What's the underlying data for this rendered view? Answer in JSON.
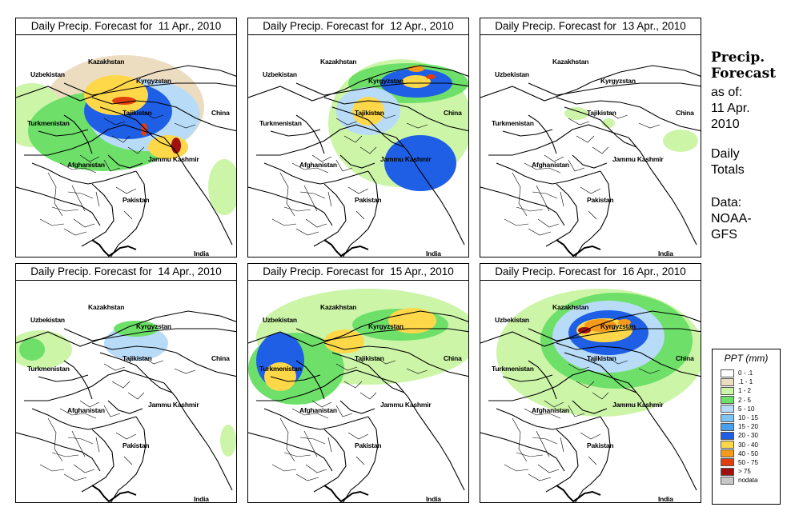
{
  "panels": [
    {
      "title": "Daily Precip. Forecast for  11 Apr., 2010",
      "date": "11 Apr., 2010"
    },
    {
      "title": "Daily Precip. Forecast for  12 Apr., 2010",
      "date": "12 Apr., 2010"
    },
    {
      "title": "Daily Precip. Forecast for  13 Apr., 2010",
      "date": "13 Apr., 2010"
    },
    {
      "title": "Daily Precip. Forecast for  14 Apr., 2010",
      "date": "14 Apr., 2010"
    },
    {
      "title": "Daily Precip. Forecast for  15 Apr., 2010",
      "date": "15 Apr., 2010"
    },
    {
      "title": "Daily Precip. Forecast for  16 Apr., 2010",
      "date": "16 Apr., 2010"
    }
  ],
  "map_labels": {
    "kazakhstan": "Kazakhstan",
    "uzbekistan": "Uzbekistan",
    "kyrgyzstan": "Kyrgyzstan",
    "tajikistan": "Tajikistan",
    "turkmenistan": "Turkmenistan",
    "china": "China",
    "afghanistan": "Afghanistan",
    "jammu_kashmir": "Jammu Kashmir",
    "pakistan": "Pakistan",
    "india": "India"
  },
  "sidebar": {
    "title_line1": "Precip.",
    "title_line2": "Forecast",
    "asof_line1": "as of:",
    "asof_line2": "11 Apr.",
    "asof_line3": "2010",
    "daily_line1": "Daily",
    "daily_line2": "Totals",
    "data_line1": "Data:",
    "data_line2": "NOAA-",
    "data_line3": "GFS"
  },
  "legend": {
    "title": "PPT (mm)",
    "items": [
      {
        "label": "0 - .1",
        "color": "#ffffff"
      },
      {
        "label": ".1 - 1",
        "color": "#ecdcc0"
      },
      {
        "label": "1 - 2",
        "color": "#ccf5a8"
      },
      {
        "label": "2 - 5",
        "color": "#6ee06a"
      },
      {
        "label": "5 - 10",
        "color": "#b8dcf8"
      },
      {
        "label": "10 - 15",
        "color": "#80c4f2"
      },
      {
        "label": "15 - 20",
        "color": "#48a0ee"
      },
      {
        "label": "20 - 30",
        "color": "#1e5fe6"
      },
      {
        "label": "30 - 40",
        "color": "#ffd84a"
      },
      {
        "label": "40 - 50",
        "color": "#f59a1a"
      },
      {
        "label": "50 - 75",
        "color": "#e04010"
      },
      {
        "label": "> 75",
        "color": "#a01010"
      },
      {
        "label": "nodata",
        "color": "#c8c8c8"
      }
    ]
  }
}
